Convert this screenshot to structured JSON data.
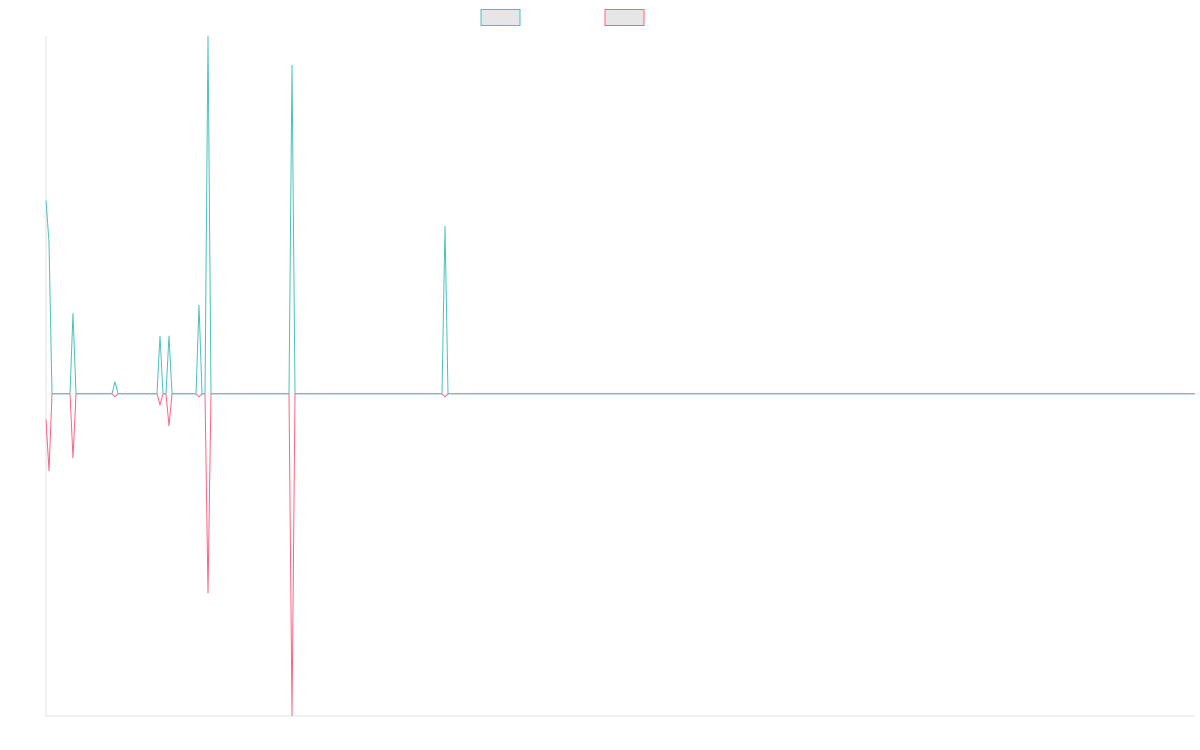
{
  "chart_data": {
    "type": "line",
    "x": [
      0,
      1,
      2,
      8,
      9,
      10,
      22,
      23,
      24,
      37,
      38,
      39,
      40,
      41,
      42,
      50,
      51,
      52,
      53,
      54,
      55,
      81,
      82,
      83,
      132,
      133,
      134,
      383
    ],
    "series": [
      {
        "color": "#ff6384",
        "values": [
          -8,
          -24,
          0,
          0,
          -20,
          0,
          0,
          -1,
          0,
          0,
          -3.4,
          0,
          0,
          -10,
          0,
          0,
          -1,
          0,
          0,
          -62,
          0,
          0,
          -100,
          0,
          0,
          -1,
          0,
          0
        ]
      },
      {
        "color": "#4bc0c0",
        "values": [
          60,
          47,
          0,
          0,
          25,
          0,
          0,
          3.7,
          0,
          0,
          18,
          0,
          0,
          18,
          0,
          0,
          27.6,
          0,
          0,
          111,
          0,
          0,
          102,
          0,
          0,
          52,
          0,
          0
        ]
      }
    ],
    "legend_order": [
      1,
      0
    ],
    "xlim": [
      0,
      383
    ],
    "ylim": [
      -100,
      111
    ],
    "legend": "top"
  }
}
